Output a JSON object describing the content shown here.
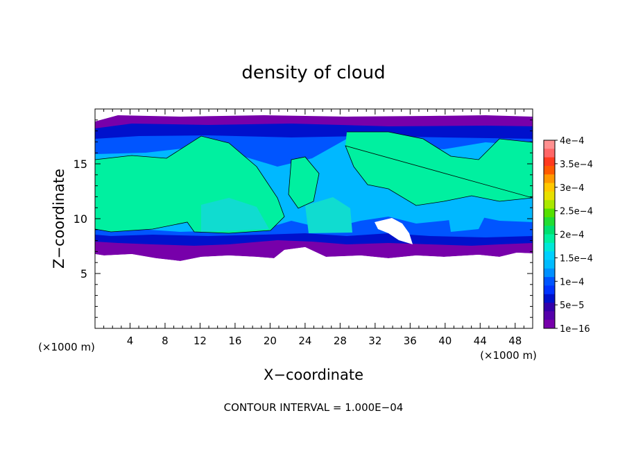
{
  "chart_data": {
    "type": "heatmap",
    "title": "density of cloud",
    "xlabel": "X−coordinate",
    "ylabel": "Z−coordinate",
    "x_unit_left": "(×1000 m)",
    "x_unit_right": "(×1000 m)",
    "footer": "CONTOUR INTERVAL = 1.000E−04",
    "xlim": [
      0,
      50
    ],
    "ylim": [
      0,
      20
    ],
    "x_ticks": [
      4,
      8,
      12,
      16,
      20,
      24,
      28,
      32,
      36,
      40,
      44,
      48
    ],
    "y_ticks": [
      5,
      10,
      15
    ],
    "colorbar": {
      "labels": [
        "4e−4",
        "3.5e−4",
        "3e−4",
        "2.5e−4",
        "2e−4",
        "1.5e−4",
        "1e−4",
        "5e−5",
        "1e−16"
      ],
      "colors": [
        "#ff9090",
        "#ff3a1e",
        "#ff9900",
        "#e8e000",
        "#22dd33",
        "#00f0a0",
        "#00bbff",
        "#0033ff",
        "#7700aa"
      ]
    },
    "cloud_z_range": [
      6.5,
      19.2
    ],
    "core_density": 0.00015
  }
}
